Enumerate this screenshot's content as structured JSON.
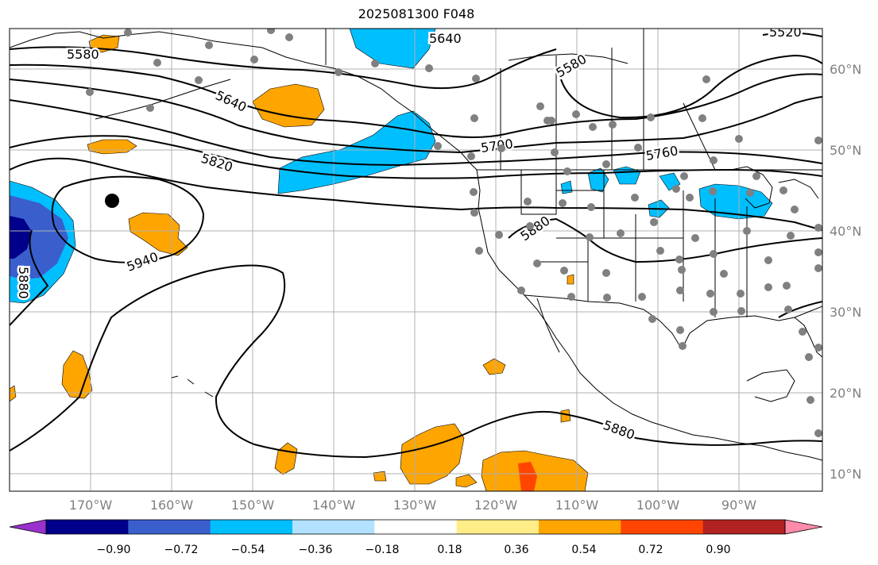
{
  "title": "2025081300 F048",
  "map": {
    "lat_labels": [
      "60°N",
      "50°N",
      "40°N",
      "30°N",
      "20°N",
      "10°N"
    ],
    "lon_labels": [
      "170°W",
      "160°W",
      "150°W",
      "140°W",
      "130°W",
      "120°W",
      "110°W",
      "100°W",
      "90°W"
    ],
    "contour_labels": [
      "5580",
      "5640",
      "5640",
      "5580",
      "5700",
      "5760",
      "5820",
      "5880",
      "5940",
      "5880",
      "5880",
      "5520"
    ],
    "colors": {
      "negative_strong": "#00008b",
      "negative_mid": "#3a5fcd",
      "negative_light": "#00bfff",
      "positive_light": "#ffa500",
      "positive_mid": "#ff4500",
      "positive_strong": "#b22222",
      "station_dot": "#808080"
    }
  },
  "colorbar": {
    "ticks": [
      "−0.90",
      "−0.72",
      "−0.54",
      "−0.36",
      "−0.18",
      "0.18",
      "0.36",
      "0.54",
      "0.72",
      "0.90"
    ],
    "colors": [
      "#9932cc",
      "#00008b",
      "#3a5fcd",
      "#00bfff",
      "#b2e2ff",
      "#ffffff",
      "#ffee88",
      "#ffa500",
      "#ff4500",
      "#b22222",
      "#ff8aaa"
    ]
  }
}
